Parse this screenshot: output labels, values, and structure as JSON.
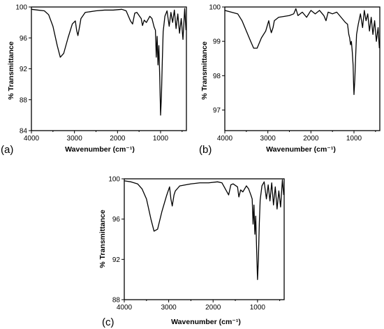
{
  "chart_data": [
    {
      "panel_label": "(a)",
      "type": "line",
      "xlabel": "Wavenumber (cm⁻¹)",
      "ylabel": "% Transmittance",
      "xlim": [
        4000,
        400
      ],
      "ylim": [
        84,
        100
      ],
      "xticks": [
        4000,
        3000,
        2000,
        1000
      ],
      "yticks": [
        84,
        88,
        92,
        96,
        100
      ],
      "x_tick_labels": [
        "4000",
        "3000",
        "2000",
        "1000"
      ],
      "y_tick_labels": [
        "84",
        "88",
        "92",
        "96",
        "100"
      ],
      "series": [
        {
          "x": [
            4000,
            3850,
            3700,
            3600,
            3500,
            3400,
            3330,
            3250,
            3150,
            3050,
            2980,
            2950,
            2920,
            2880,
            2850,
            2750,
            2500,
            2300,
            2100,
            1900,
            1800,
            1700,
            1650,
            1600,
            1550,
            1450,
            1420,
            1380,
            1330,
            1250,
            1200,
            1150,
            1120,
            1100,
            1080,
            1060,
            1040,
            1020,
            1000,
            980,
            960,
            940,
            900,
            850,
            800,
            760,
            720,
            680,
            640,
            600,
            560,
            520,
            480,
            440,
            410
          ],
          "y": [
            99.7,
            99.6,
            99.5,
            99.0,
            97.5,
            95.0,
            93.5,
            94.0,
            96.0,
            97.8,
            98.2,
            97.0,
            96.3,
            97.5,
            98.5,
            99.3,
            99.5,
            99.6,
            99.6,
            99.7,
            99.5,
            98.2,
            97.8,
            99.2,
            99.3,
            98.5,
            97.6,
            98.3,
            98.0,
            98.8,
            98.5,
            97.4,
            97.0,
            93.5,
            96.2,
            92.5,
            95.0,
            91.0,
            86.0,
            88.5,
            93.0,
            96.8,
            98.8,
            99.5,
            97.5,
            99.3,
            98.0,
            99.6,
            97.2,
            99.1,
            96.6,
            98.5,
            95.8,
            99.8,
            97.0
          ]
        }
      ]
    },
    {
      "panel_label": "(b)",
      "type": "line",
      "xlabel": "Wavenumber (cm⁻¹)",
      "ylabel": "% Transmittance",
      "xlim": [
        4000,
        400
      ],
      "ylim": [
        96.4,
        100
      ],
      "xticks": [
        4000,
        3000,
        2000,
        1000
      ],
      "yticks": [
        97,
        98,
        99,
        100
      ],
      "x_tick_labels": [
        "4000",
        "3000",
        "2000",
        "1000"
      ],
      "y_tick_labels": [
        "97",
        "98",
        "99",
        "100"
      ],
      "series": [
        {
          "x": [
            4000,
            3850,
            3700,
            3600,
            3500,
            3400,
            3330,
            3250,
            3150,
            3050,
            2980,
            2950,
            2920,
            2880,
            2850,
            2750,
            2500,
            2400,
            2350,
            2300,
            2200,
            2100,
            2000,
            1900,
            1800,
            1700,
            1650,
            1600,
            1500,
            1400,
            1300,
            1200,
            1150,
            1120,
            1100,
            1080,
            1060,
            1040,
            1020,
            1010,
            1000,
            980,
            960,
            940,
            900,
            850,
            800,
            760,
            720,
            680,
            640,
            600,
            560,
            520,
            480,
            440,
            410
          ],
          "y": [
            99.9,
            99.85,
            99.8,
            99.6,
            99.3,
            99.0,
            98.8,
            98.8,
            99.1,
            99.3,
            99.6,
            99.4,
            99.25,
            99.4,
            99.6,
            99.7,
            99.75,
            99.8,
            99.95,
            99.75,
            99.85,
            99.7,
            99.9,
            99.8,
            99.9,
            99.75,
            99.6,
            99.85,
            99.8,
            99.85,
            99.7,
            99.55,
            99.5,
            99.2,
            99.1,
            98.9,
            99.0,
            98.7,
            98.3,
            97.8,
            97.45,
            97.9,
            98.6,
            99.2,
            99.5,
            99.8,
            99.4,
            99.9,
            99.6,
            99.8,
            99.3,
            99.7,
            99.2,
            99.6,
            99.0,
            99.4,
            98.8
          ]
        }
      ]
    },
    {
      "panel_label": "(c)",
      "type": "line",
      "xlabel": "Wavenumber (cm⁻¹)",
      "ylabel": "% Transmittance",
      "xlim": [
        4000,
        400
      ],
      "ylim": [
        88,
        100
      ],
      "xticks": [
        4000,
        3000,
        2000,
        1000
      ],
      "yticks": [
        88,
        92,
        96,
        100
      ],
      "x_tick_labels": [
        "4000",
        "3000",
        "2000",
        "1000"
      ],
      "y_tick_labels": [
        "88",
        "92",
        "96",
        "100"
      ],
      "series": [
        {
          "x": [
            4000,
            3850,
            3700,
            3600,
            3500,
            3400,
            3330,
            3250,
            3150,
            3050,
            2980,
            2950,
            2920,
            2880,
            2850,
            2750,
            2500,
            2300,
            2100,
            1900,
            1800,
            1700,
            1650,
            1600,
            1550,
            1450,
            1420,
            1380,
            1330,
            1250,
            1200,
            1150,
            1120,
            1100,
            1080,
            1060,
            1040,
            1020,
            1000,
            980,
            960,
            940,
            900,
            850,
            800,
            760,
            720,
            680,
            640,
            600,
            560,
            520,
            480,
            440,
            410
          ],
          "y": [
            99.8,
            99.7,
            99.5,
            99.0,
            98.0,
            96.0,
            94.8,
            95.0,
            96.8,
            98.3,
            99.2,
            98.0,
            97.3,
            98.4,
            98.8,
            99.3,
            99.5,
            99.6,
            99.6,
            99.7,
            99.6,
            98.8,
            98.4,
            99.4,
            99.5,
            99.2,
            98.2,
            98.9,
            98.7,
            99.3,
            99.0,
            98.4,
            98.0,
            95.5,
            97.4,
            94.5,
            96.3,
            93.0,
            90.0,
            92.0,
            95.5,
            97.9,
            99.3,
            99.7,
            98.0,
            99.4,
            97.8,
            99.6,
            97.4,
            99.2,
            97.0,
            98.8,
            97.2,
            99.9,
            98.4
          ]
        }
      ]
    }
  ]
}
